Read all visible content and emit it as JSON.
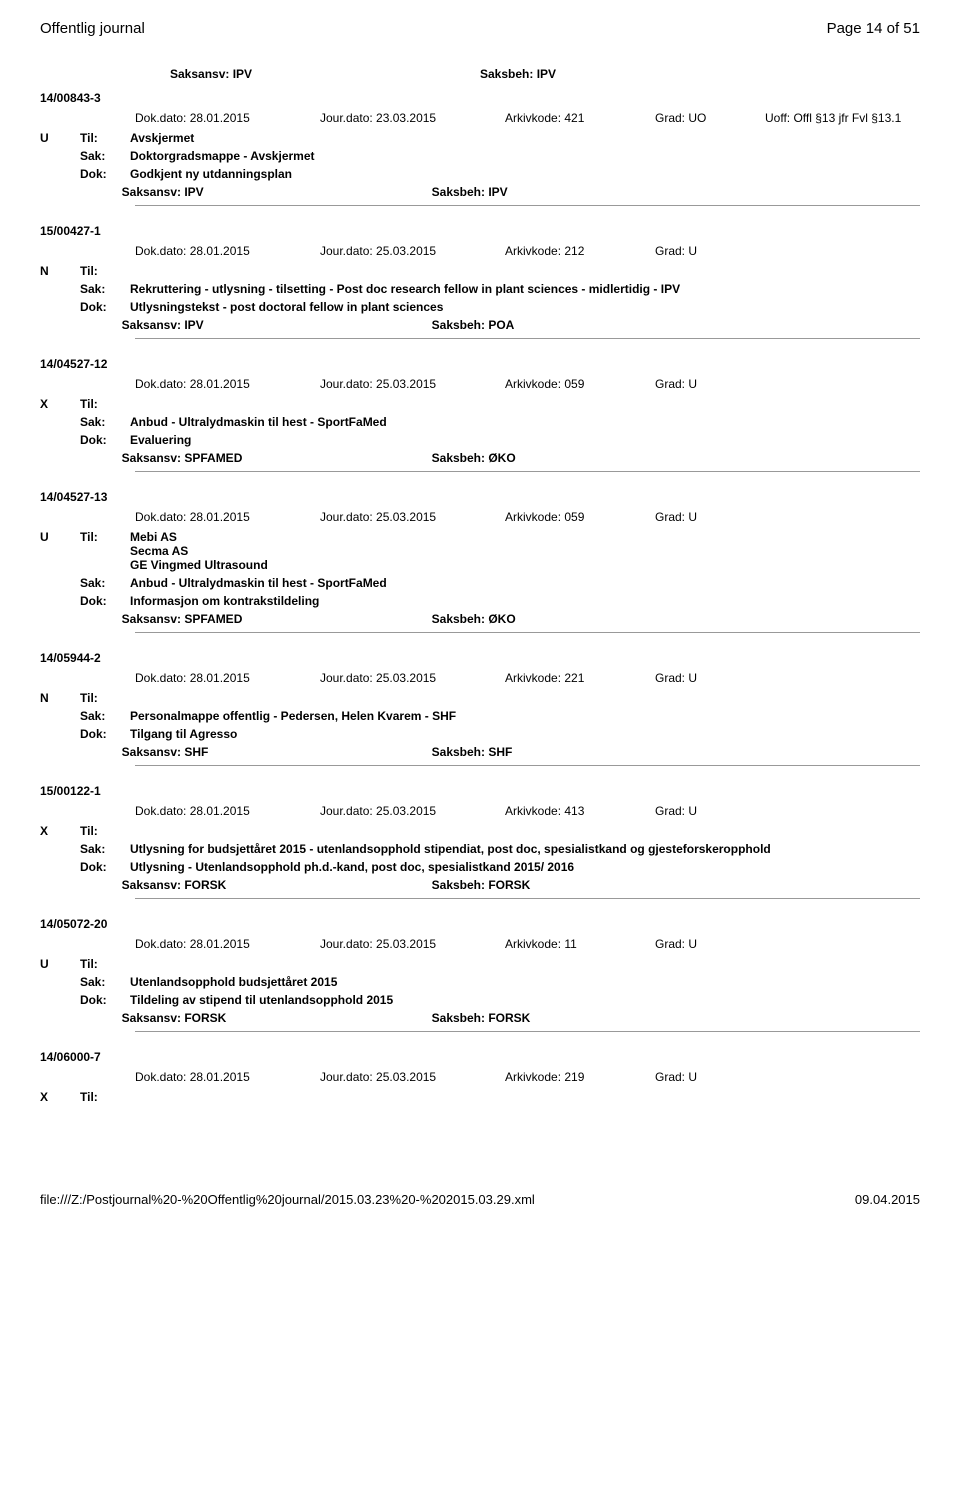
{
  "header": {
    "left": "Offentlig journal",
    "right": "Page 14 of 51"
  },
  "labels": {
    "dok_dato": "Dok.dato:",
    "jour_dato": "Jour.dato:",
    "arkivkode": "Arkivkode:",
    "grad": "Grad:",
    "uoff": "Uoff:",
    "til": "Til:",
    "sak": "Sak:",
    "dok": "Dok:",
    "saksansv": "Saksansv:",
    "saksbeh": "Saksbeh:"
  },
  "top_saksansv": {
    "ansv": "IPV",
    "beh": "IPV"
  },
  "entries": [
    {
      "case_id": "14/00843-3",
      "dok_dato": "28.01.2015",
      "jour_dato": "23.03.2015",
      "arkivkode": "421",
      "grad": "UO",
      "uoff": "Offl §13 jfr Fvl §13.1",
      "letter": "U",
      "til": [
        "Avskjermet"
      ],
      "sak": "Doktorgradsmappe - Avskjermet",
      "dok": "Godkjent ny utdanningsplan",
      "saksansv": "IPV",
      "saksbeh": "IPV"
    },
    {
      "case_id": "15/00427-1",
      "dok_dato": "28.01.2015",
      "jour_dato": "25.03.2015",
      "arkivkode": "212",
      "grad": "U",
      "uoff": "",
      "letter": "N",
      "til": [
        ""
      ],
      "sak": "Rekruttering - utlysning - tilsetting - Post doc research fellow in plant sciences - midlertidig - IPV",
      "dok": "Utlysningstekst - post doctoral fellow in plant sciences",
      "saksansv": "IPV",
      "saksbeh": "POA"
    },
    {
      "case_id": "14/04527-12",
      "dok_dato": "28.01.2015",
      "jour_dato": "25.03.2015",
      "arkivkode": "059",
      "grad": "U",
      "uoff": "",
      "letter": "X",
      "til": [
        ""
      ],
      "sak": "Anbud - Ultralydmaskin til hest - SportFaMed",
      "dok": "Evaluering",
      "saksansv": "SPFAMED",
      "saksbeh": "ØKO"
    },
    {
      "case_id": "14/04527-13",
      "dok_dato": "28.01.2015",
      "jour_dato": "25.03.2015",
      "arkivkode": "059",
      "grad": "U",
      "uoff": "",
      "letter": "U",
      "til": [
        "Mebi AS",
        "Secma AS",
        "GE Vingmed Ultrasound"
      ],
      "sak": "Anbud - Ultralydmaskin til hest - SportFaMed",
      "dok": "Informasjon om kontrakstildeling",
      "saksansv": "SPFAMED",
      "saksbeh": "ØKO"
    },
    {
      "case_id": "14/05944-2",
      "dok_dato": "28.01.2015",
      "jour_dato": "25.03.2015",
      "arkivkode": "221",
      "grad": "U",
      "uoff": "",
      "letter": "N",
      "til": [
        ""
      ],
      "sak": "Personalmappe offentlig - Pedersen, Helen Kvarem - SHF",
      "dok": "Tilgang til Agresso",
      "saksansv": "SHF",
      "saksbeh": "SHF"
    },
    {
      "case_id": "15/00122-1",
      "dok_dato": "28.01.2015",
      "jour_dato": "25.03.2015",
      "arkivkode": "413",
      "grad": "U",
      "uoff": "",
      "letter": "X",
      "til": [
        ""
      ],
      "sak": "Utlysning for budsjettåret 2015 - utenlandsopphold stipendiat, post doc, spesialistkand og gjesteforskeropphold",
      "dok": "Utlysning - Utenlandsopphold ph.d.-kand, post doc, spesialistkand 2015/ 2016",
      "saksansv": "FORSK",
      "saksbeh": "FORSK"
    },
    {
      "case_id": "14/05072-20",
      "dok_dato": "28.01.2015",
      "jour_dato": "25.03.2015",
      "arkivkode": "11",
      "grad": "U",
      "uoff": "",
      "letter": "U",
      "til": [
        ""
      ],
      "sak": "Utenlandsopphold budsjettåret 2015",
      "dok": "Tildeling av stipend til utenlandsopphold 2015",
      "saksansv": "FORSK",
      "saksbeh": "FORSK"
    },
    {
      "case_id": "14/06000-7",
      "dok_dato": "28.01.2015",
      "jour_dato": "25.03.2015",
      "arkivkode": "219",
      "grad": "U",
      "uoff": "",
      "letter": "X",
      "til": [
        ""
      ],
      "sak": "",
      "dok": "",
      "saksansv": "",
      "saksbeh": "",
      "partial": true
    }
  ],
  "footer": {
    "left": "file:///Z:/Postjournal%20-%20Offentlig%20journal/2015.03.23%20-%202015.03.29.xml",
    "right": "09.04.2015"
  }
}
